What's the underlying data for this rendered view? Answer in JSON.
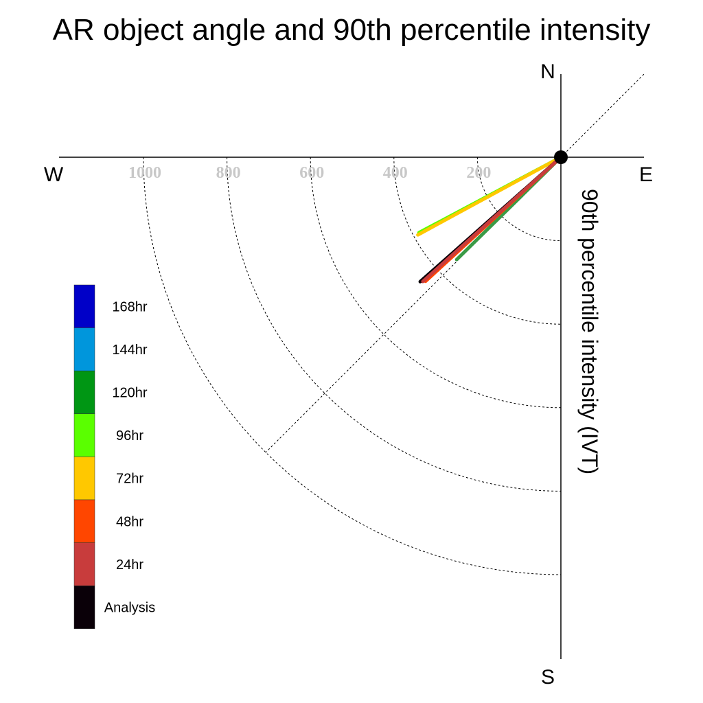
{
  "chart_data": {
    "type": "polar-vector",
    "title": "AR object angle and 90th percentile intensity",
    "ylabel": "90th percentile intensity (IVT)",
    "compass": {
      "north": "N",
      "south": "S",
      "east": "E",
      "west": "W"
    },
    "radial_ticks": [
      "200",
      "400",
      "600",
      "800",
      "1000"
    ],
    "radial_tick_values": [
      200,
      400,
      600,
      800,
      1000
    ],
    "radial_max": 1000,
    "grid": true,
    "legend_placement": "left",
    "legend": [
      {
        "label": "168hr",
        "color": "#0000c8"
      },
      {
        "label": "144hr",
        "color": "#0096dc"
      },
      {
        "label": "120hr",
        "color": "#009614"
      },
      {
        "label": "96hr",
        "color": "#5aff00"
      },
      {
        "label": "72hr",
        "color": "#ffc800"
      },
      {
        "label": "48hr",
        "color": "#ff4600"
      },
      {
        "label": "24hr",
        "color": "#c83c3c"
      },
      {
        "label": "Analysis",
        "color": "#0a0008"
      }
    ],
    "series": [
      {
        "name": "120hr",
        "angle_deg": 225.5,
        "intensity": 350,
        "color": "#3a9a46"
      },
      {
        "name": "96hr",
        "angle_deg": 242.0,
        "intensity": 385,
        "color": "#5aff00"
      },
      {
        "name": "72hr",
        "angle_deg": 241.5,
        "intensity": 390,
        "color": "#ffc800"
      },
      {
        "name": "Analysis",
        "angle_deg": 228.5,
        "intensity": 450,
        "color": "#0a0008"
      },
      {
        "name": "48hr",
        "angle_deg": 227.5,
        "intensity": 440,
        "color": "#ff4600"
      },
      {
        "name": "24hr",
        "angle_deg": 228.0,
        "intensity": 445,
        "color": "#c83c3c"
      }
    ]
  }
}
